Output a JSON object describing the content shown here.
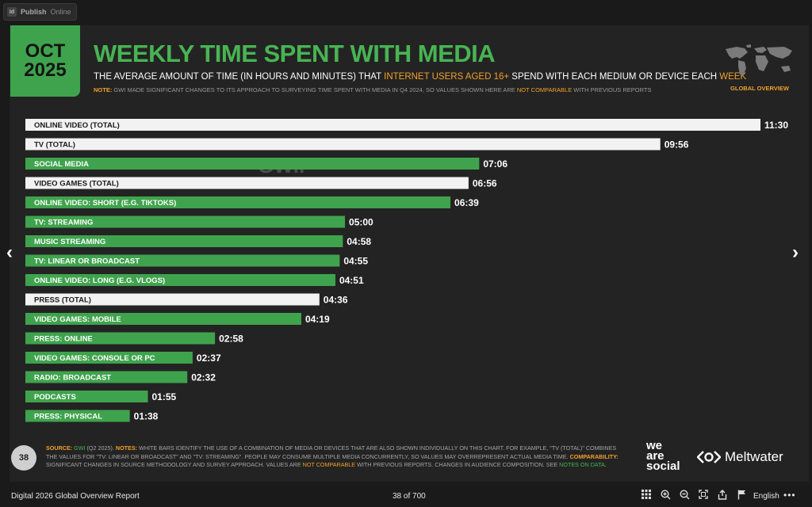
{
  "app": {
    "badge": "Id",
    "publish": "Publish",
    "online": "Online"
  },
  "slide": {
    "date_line1": "OCT",
    "date_line2": "2025",
    "title": "WEEKLY TIME SPENT WITH MEDIA",
    "subtitle_1": "THE AVERAGE AMOUNT OF TIME (IN HOURS AND MINUTES) THAT ",
    "subtitle_hl1": "INTERNET USERS AGED 16+",
    "subtitle_2": " SPEND WITH EACH MEDIUM OR DEVICE EACH ",
    "subtitle_hl2": "WEEK",
    "note_label": "NOTE:",
    "note_text": " GWI MADE SIGNIFICANT CHANGES TO ITS APPROACH TO SURVEYING TIME SPENT WITH MEDIA IN Q4 2024, SO VALUES SHOWN HERE ARE ",
    "note_hl": "NOT COMPARABLE",
    "note_tail": " WITH PREVIOUS REPORTS",
    "global_label": "GLOBAL OVERVIEW",
    "watermark_1": "DATAREPORTAL",
    "watermark_2": "GWI."
  },
  "chart_data": {
    "type": "bar",
    "orientation": "horizontal",
    "title": "WEEKLY TIME SPENT WITH MEDIA",
    "unit": "hours:minutes per week",
    "categories": [
      "ONLINE VIDEO (TOTAL)",
      "TV (TOTAL)",
      "SOCIAL MEDIA",
      "VIDEO GAMES (TOTAL)",
      "ONLINE VIDEO: SHORT (E.G. TIKTOKS)",
      "TV: STREAMING",
      "MUSIC STREAMING",
      "TV: LINEAR OR BROADCAST",
      "ONLINE VIDEO: LONG (E.G. VLOGS)",
      "PRESS (TOTAL)",
      "VIDEO GAMES: MOBILE",
      "PRESS: ONLINE",
      "VIDEO GAMES: CONSOLE OR PC",
      "RADIO: BROADCAST",
      "PODCASTS",
      "PRESS: PHYSICAL"
    ],
    "labels": [
      "11:30",
      "09:56",
      "07:06",
      "06:56",
      "06:39",
      "05:00",
      "04:58",
      "04:55",
      "04:51",
      "04:36",
      "04:19",
      "02:58",
      "02:37",
      "02:32",
      "01:55",
      "01:38"
    ],
    "values_minutes": [
      690,
      596,
      426,
      416,
      399,
      300,
      298,
      295,
      291,
      276,
      259,
      178,
      157,
      152,
      115,
      98
    ],
    "kinds": [
      "total",
      "total",
      "single",
      "total",
      "single",
      "single",
      "single",
      "single",
      "single",
      "total",
      "single",
      "single",
      "single",
      "single",
      "single",
      "single"
    ],
    "colors": {
      "total": "#f2f2f2",
      "single": "#3fa34d"
    },
    "xlim": [
      0,
      690
    ]
  },
  "footer": {
    "page_number": "38",
    "source_label": "SOURCE:",
    "source_gwi": " GWI",
    "source_period": " (Q2 2025). ",
    "notes_label": "NOTES:",
    "notes_text": " WHITE BARS IDENTIFY THE USE OF A COMBINATION OF MEDIA OR DEVICES THAT ARE ALSO SHOWN INDIVIDUALLY ON THIS CHART. FOR EXAMPLE, \"TV (TOTAL)\" COMBINES THE VALUES FOR \"TV: LINEAR OR BROADCAST\" AND \"TV: STREAMING\". PEOPLE MAY CONSUME MULTIPLE MEDIA CONCURRENTLY, SO VALUES MAY OVERREPRESENT ACTUAL MEDIA TIME. ",
    "comp_label": "COMPARABILITY:",
    "comp_text": " SIGNIFICANT CHANGES IN SOURCE METHODOLOGY AND SURVEY APPROACH. VALUES ARE ",
    "comp_hl": "NOT COMPARABLE",
    "comp_tail": " WITH PREVIOUS REPORTS. CHANGES IN AUDIENCE COMPOSITION. SEE ",
    "comp_link": "NOTES ON DATA",
    "comp_end": ".",
    "brand_1": "we",
    "brand_2": "are",
    "brand_3": "social",
    "brand_meltwater": "Meltwater"
  },
  "bottombar": {
    "doc_title": "Digital 2026 Global Overview Report",
    "page_indicator": "38 of 700",
    "language": "English",
    "more": "•••"
  },
  "nav": {
    "prev": "‹",
    "next": "›"
  }
}
